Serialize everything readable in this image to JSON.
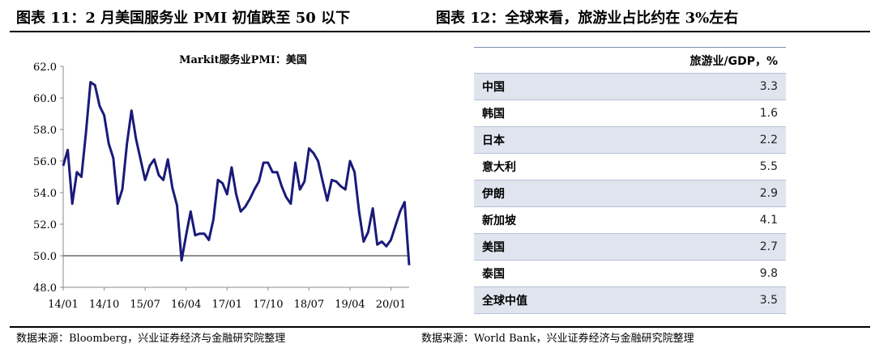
{
  "header_left": "图表 11：2 月美国服务业 PMI 初值跌至 50 以下",
  "header_right": "图表 12：全球来看，旅游业占比约在 3%左右",
  "source_left": "数据来源：Bloomberg，兴业证券经济与金融研究院整理",
  "source_right": "数据来源：World Bank，兴业证券经济与金融研究院整理",
  "chart_data": [
    {
      "type": "line",
      "title": "Markit服务业PMI：美国",
      "ylim": [
        48.0,
        62.0
      ],
      "yticks": [
        "48.0",
        "50.0",
        "52.0",
        "54.0",
        "56.0",
        "58.0",
        "60.0",
        "62.0"
      ],
      "xtick_labels": [
        "14/01",
        "14/10",
        "15/07",
        "16/04",
        "17/01",
        "17/10",
        "18/07",
        "19/04",
        "20/01"
      ],
      "reference_line": 50,
      "color": "#1a1a7a",
      "series": [
        {
          "values": [
            55.7,
            56.7,
            53.3,
            55.3,
            55.0,
            57.8,
            61.0,
            60.8,
            59.5,
            58.9,
            57.1,
            56.2,
            53.3,
            54.2,
            57.1,
            59.2,
            57.4,
            56.1,
            54.8,
            55.7,
            56.1,
            55.1,
            54.8,
            56.1,
            54.3,
            53.2,
            49.7,
            51.3,
            52.8,
            51.3,
            51.4,
            51.4,
            51.0,
            52.3,
            54.8,
            54.6,
            53.9,
            55.6,
            53.9,
            52.8,
            53.1,
            53.6,
            54.2,
            54.7,
            55.9,
            55.9,
            55.3,
            55.3,
            54.4,
            53.7,
            53.3,
            55.9,
            54.2,
            54.7,
            56.8,
            56.5,
            56.0,
            54.7,
            53.5,
            54.8,
            54.7,
            54.4,
            54.2,
            56.0,
            55.3,
            52.8,
            50.9,
            51.5,
            53.0,
            50.7,
            50.9,
            50.6,
            51.0,
            51.9,
            52.8,
            53.4,
            49.4
          ]
        }
      ]
    },
    {
      "type": "table",
      "header": "旅游业/GDP，%",
      "rows": [
        {
          "country": "中国",
          "value": "3.3"
        },
        {
          "country": "韩国",
          "value": "1.6"
        },
        {
          "country": "日本",
          "value": "2.2"
        },
        {
          "country": "意大利",
          "value": "5.5"
        },
        {
          "country": "伊朗",
          "value": "2.9"
        },
        {
          "country": "新加坡",
          "value": "4.1"
        },
        {
          "country": "美国",
          "value": "2.7"
        },
        {
          "country": "泰国",
          "value": "9.8"
        },
        {
          "country": "全球中值",
          "value": "3.5"
        }
      ]
    }
  ]
}
